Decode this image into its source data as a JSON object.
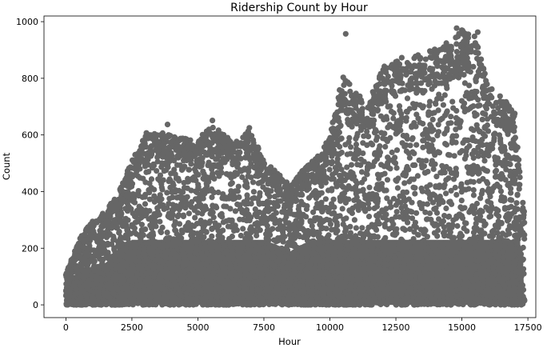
{
  "chart_data": {
    "type": "scatter",
    "title": "Ridership Count by Hour",
    "xlabel": "Hour",
    "ylabel": "Count",
    "xlim": [
      -830,
      17800
    ],
    "ylim": [
      -45,
      1020
    ],
    "xticks": [
      0,
      2500,
      5000,
      7500,
      10000,
      12500,
      15000,
      17500
    ],
    "yticks": [
      0,
      200,
      400,
      600,
      800,
      1000
    ],
    "grid": false,
    "marker_color": "#666666",
    "x_range": [
      0,
      17378
    ],
    "envelope": [
      {
        "x": 0,
        "y": 110
      },
      {
        "x": 500,
        "y": 230
      },
      {
        "x": 1000,
        "y": 300
      },
      {
        "x": 1500,
        "y": 330
      },
      {
        "x": 2000,
        "y": 400
      },
      {
        "x": 2500,
        "y": 510
      },
      {
        "x": 3000,
        "y": 600
      },
      {
        "x": 3500,
        "y": 610
      },
      {
        "x": 4000,
        "y": 600
      },
      {
        "x": 4500,
        "y": 590
      },
      {
        "x": 5000,
        "y": 580
      },
      {
        "x": 5500,
        "y": 640
      },
      {
        "x": 6000,
        "y": 600
      },
      {
        "x": 6500,
        "y": 590
      },
      {
        "x": 7000,
        "y": 620
      },
      {
        "x": 7500,
        "y": 510
      },
      {
        "x": 8000,
        "y": 470
      },
      {
        "x": 8500,
        "y": 420
      },
      {
        "x": 9000,
        "y": 480
      },
      {
        "x": 9500,
        "y": 520
      },
      {
        "x": 10000,
        "y": 600
      },
      {
        "x": 10500,
        "y": 820
      },
      {
        "x": 11000,
        "y": 750
      },
      {
        "x": 11500,
        "y": 720
      },
      {
        "x": 12000,
        "y": 850
      },
      {
        "x": 12500,
        "y": 860
      },
      {
        "x": 13000,
        "y": 890
      },
      {
        "x": 13500,
        "y": 880
      },
      {
        "x": 14000,
        "y": 910
      },
      {
        "x": 14500,
        "y": 930
      },
      {
        "x": 15000,
        "y": 975
      },
      {
        "x": 15500,
        "y": 950
      },
      {
        "x": 16000,
        "y": 780
      },
      {
        "x": 16500,
        "y": 740
      },
      {
        "x": 17000,
        "y": 680
      },
      {
        "x": 17378,
        "y": 310
      }
    ],
    "highlights": [
      {
        "x": 10600,
        "y": 957
      },
      {
        "x": 14800,
        "y": 977
      },
      {
        "x": 15000,
        "y": 970
      },
      {
        "x": 15600,
        "y": 963
      },
      {
        "x": 5550,
        "y": 651
      },
      {
        "x": 3850,
        "y": 637
      },
      {
        "x": 6950,
        "y": 625
      },
      {
        "x": 3050,
        "y": 607
      }
    ]
  }
}
